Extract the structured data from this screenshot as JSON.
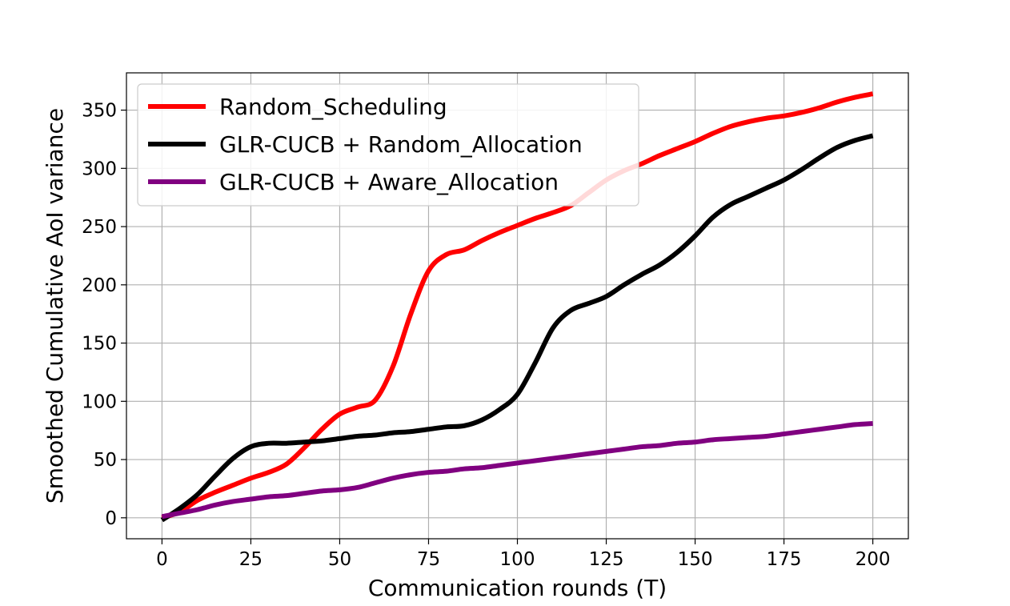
{
  "chart_data": {
    "type": "line",
    "title": "",
    "xlabel": "Communication rounds (T)",
    "ylabel": "Smoothed Cumulative AoI variance",
    "xlim": [
      -10,
      210
    ],
    "ylim": [
      -18,
      382
    ],
    "xticks": [
      0,
      25,
      50,
      75,
      100,
      125,
      150,
      175,
      200
    ],
    "yticks": [
      0,
      50,
      100,
      150,
      200,
      250,
      300,
      350
    ],
    "grid": true,
    "legend_position": "upper-left",
    "series": [
      {
        "name": "Random_Scheduling",
        "color": "#ff0000",
        "x": [
          0,
          5,
          10,
          15,
          20,
          25,
          30,
          35,
          40,
          45,
          50,
          55,
          60,
          65,
          70,
          75,
          80,
          85,
          90,
          95,
          100,
          105,
          110,
          115,
          120,
          125,
          130,
          135,
          140,
          145,
          150,
          155,
          160,
          165,
          170,
          175,
          180,
          185,
          190,
          195,
          200
        ],
        "y": [
          0,
          5,
          15,
          22,
          28,
          34,
          39,
          46,
          60,
          76,
          89,
          95,
          101,
          130,
          175,
          212,
          226,
          230,
          238,
          245,
          251,
          257,
          262,
          268,
          279,
          290,
          298,
          304,
          311,
          317,
          323,
          330,
          336,
          340,
          343,
          345,
          348,
          352,
          357,
          361,
          364
        ]
      },
      {
        "name": "GLR-CUCB + Random_Allocation",
        "color": "#000000",
        "x": [
          0,
          5,
          10,
          15,
          20,
          25,
          30,
          35,
          40,
          45,
          50,
          55,
          60,
          65,
          70,
          75,
          80,
          85,
          90,
          95,
          100,
          105,
          110,
          115,
          120,
          125,
          130,
          135,
          140,
          145,
          150,
          155,
          160,
          165,
          170,
          175,
          180,
          185,
          190,
          195,
          200
        ],
        "y": [
          -2,
          8,
          20,
          36,
          51,
          61,
          64,
          64,
          65,
          66,
          68,
          70,
          71,
          73,
          74,
          76,
          78,
          79,
          84,
          93,
          106,
          133,
          163,
          178,
          184,
          190,
          200,
          209,
          217,
          228,
          242,
          258,
          269,
          276,
          283,
          290,
          299,
          309,
          318,
          324,
          328
        ]
      },
      {
        "name": "GLR-CUCB + Aware_Allocation",
        "color": "#800080",
        "x": [
          0,
          5,
          10,
          15,
          20,
          25,
          30,
          35,
          40,
          45,
          50,
          55,
          60,
          65,
          70,
          75,
          80,
          85,
          90,
          95,
          100,
          105,
          110,
          115,
          120,
          125,
          130,
          135,
          140,
          145,
          150,
          155,
          160,
          165,
          170,
          175,
          180,
          185,
          190,
          195,
          200
        ],
        "y": [
          1,
          4,
          7,
          11,
          14,
          16,
          18,
          19,
          21,
          23,
          24,
          26,
          30,
          34,
          37,
          39,
          40,
          42,
          43,
          45,
          47,
          49,
          51,
          53,
          55,
          57,
          59,
          61,
          62,
          64,
          65,
          67,
          68,
          69,
          70,
          72,
          74,
          76,
          78,
          80,
          81
        ]
      }
    ]
  }
}
